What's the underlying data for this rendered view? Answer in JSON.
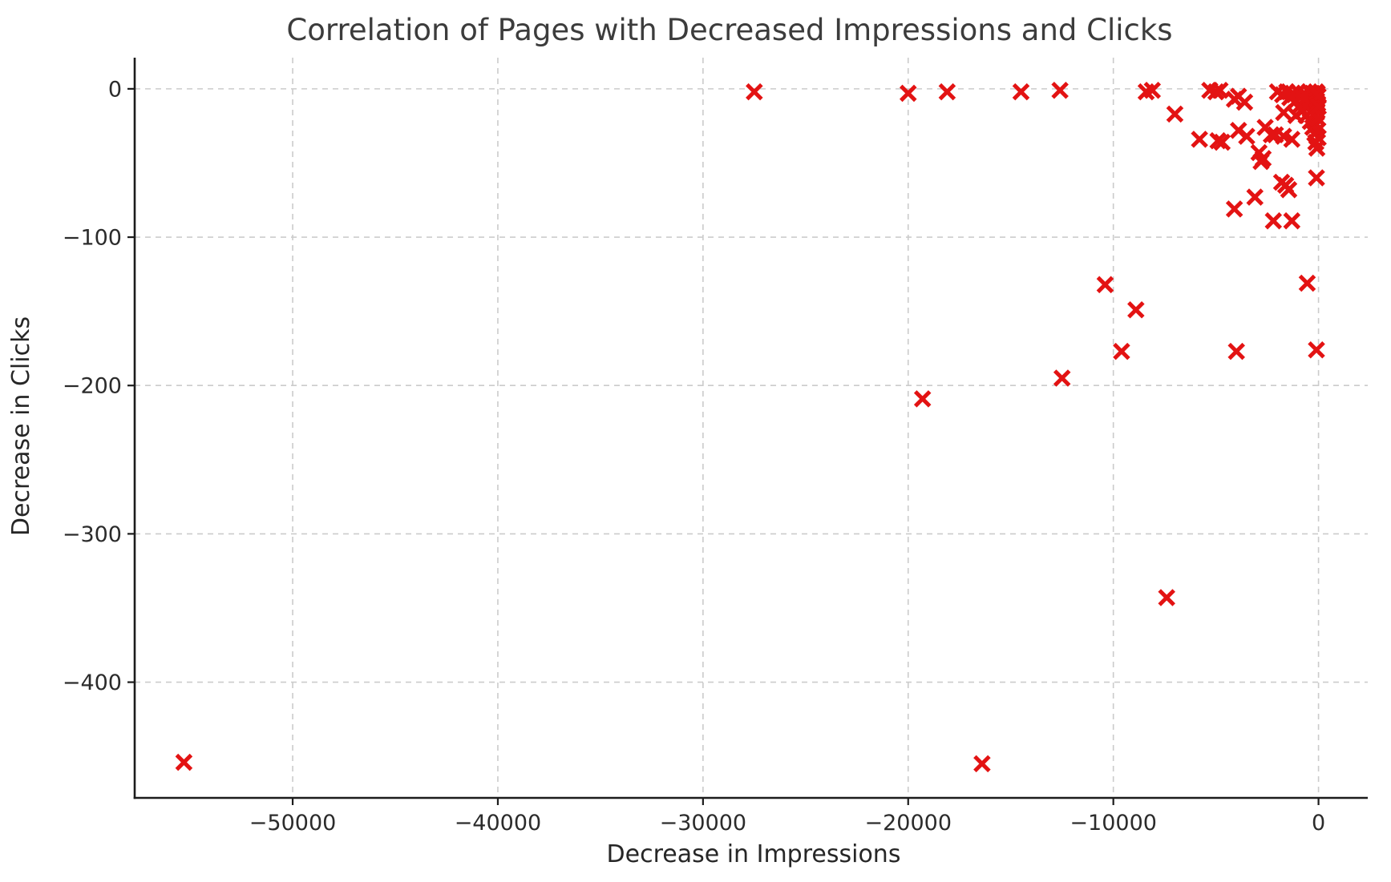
{
  "chart_data": {
    "type": "scatter",
    "title": "Correlation of Pages with Decreased Impressions and Clicks",
    "xlabel": "Decrease in Impressions",
    "ylabel": "Decrease in Clicks",
    "marker": "x",
    "marker_color": "#e31313",
    "grid": true,
    "grid_style": "dashed",
    "grid_color": "#cbcbcb",
    "spine_color": "#1c1c1c",
    "xlim": [
      -57700,
      2400
    ],
    "ylim": [
      -478,
      21
    ],
    "x_ticks": [
      -50000,
      -40000,
      -30000,
      -20000,
      -10000,
      0
    ],
    "y_ticks": [
      0,
      -100,
      -200,
      -300,
      -400
    ],
    "points": [
      [
        -55300,
        -454
      ],
      [
        -27500,
        -2
      ],
      [
        -20000,
        -3
      ],
      [
        -19300,
        -209
      ],
      [
        -18100,
        -2
      ],
      [
        -16400,
        -455
      ],
      [
        -14500,
        -2
      ],
      [
        -12600,
        -1
      ],
      [
        -12500,
        -195
      ],
      [
        -10400,
        -132
      ],
      [
        -9600,
        -177
      ],
      [
        -8900,
        -149
      ],
      [
        -8400,
        -2
      ],
      [
        -8100,
        -1
      ],
      [
        -7400,
        -343
      ],
      [
        -7000,
        -17
      ],
      [
        -5800,
        -34
      ],
      [
        -5300,
        -1
      ],
      [
        -5000,
        -2
      ],
      [
        -4900,
        -35
      ],
      [
        -4800,
        -1
      ],
      [
        -4700,
        -36
      ],
      [
        -4100,
        -7
      ],
      [
        -4100,
        -81
      ],
      [
        -4000,
        -177
      ],
      [
        -3900,
        -5
      ],
      [
        -3900,
        -28
      ],
      [
        -3600,
        -9
      ],
      [
        -3500,
        -32
      ],
      [
        -3100,
        -73
      ],
      [
        -2900,
        -43
      ],
      [
        -2800,
        -49
      ],
      [
        -2700,
        -47
      ],
      [
        -2600,
        -26
      ],
      [
        -2300,
        -31
      ],
      [
        -2200,
        -89
      ],
      [
        -2100,
        -31
      ],
      [
        -2000,
        -2
      ],
      [
        -1800,
        -63
      ],
      [
        -1750,
        -4
      ],
      [
        -1700,
        -16
      ],
      [
        -1700,
        -32
      ],
      [
        -1600,
        -65
      ],
      [
        -1550,
        -2
      ],
      [
        -1450,
        -68
      ],
      [
        -1400,
        -6
      ],
      [
        -1300,
        -34
      ],
      [
        -1300,
        -89
      ],
      [
        -1250,
        -3
      ],
      [
        -1100,
        -8
      ],
      [
        -1100,
        -18
      ],
      [
        -1000,
        -2
      ],
      [
        -950,
        -12
      ],
      [
        -850,
        -5
      ],
      [
        -800,
        -15
      ],
      [
        -700,
        -3
      ],
      [
        -650,
        -9
      ],
      [
        -600,
        -18
      ],
      [
        -550,
        -5
      ],
      [
        -550,
        -131
      ],
      [
        -500,
        -12
      ],
      [
        -450,
        -2
      ],
      [
        -400,
        -22
      ],
      [
        -380,
        -7
      ],
      [
        -350,
        -15
      ],
      [
        -300,
        -3
      ],
      [
        -280,
        -26
      ],
      [
        -250,
        -9
      ],
      [
        -220,
        -18
      ],
      [
        -200,
        -5
      ],
      [
        -180,
        -30
      ],
      [
        -150,
        -12
      ],
      [
        -130,
        -36
      ],
      [
        -120,
        -2
      ],
      [
        -100,
        -24
      ],
      [
        -100,
        -60
      ],
      [
        -100,
        -176
      ],
      [
        -90,
        -8
      ],
      [
        -80,
        -40
      ],
      [
        -70,
        -15
      ],
      [
        -60,
        -3
      ],
      [
        -50,
        -28
      ],
      [
        -40,
        -10
      ],
      [
        -30,
        -20
      ],
      [
        -20,
        -5
      ],
      [
        -15,
        -33
      ],
      [
        -10,
        -12
      ]
    ]
  }
}
